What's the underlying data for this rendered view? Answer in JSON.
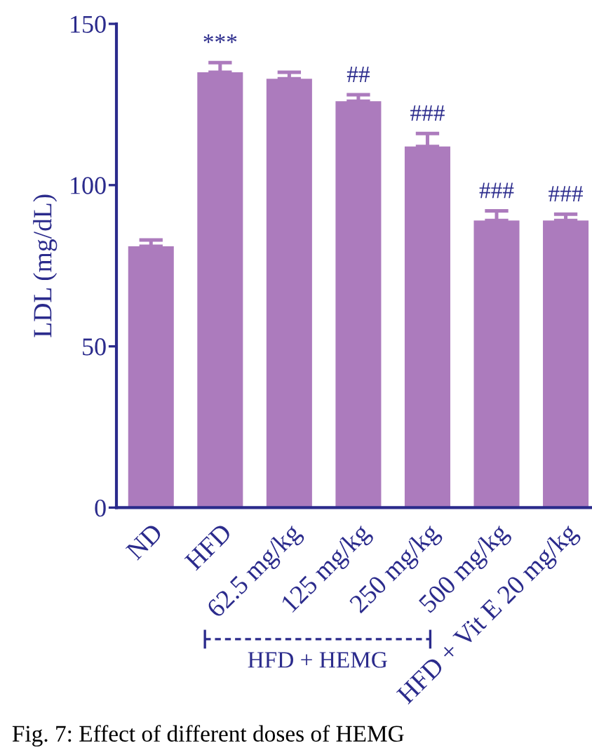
{
  "chart_data": {
    "type": "bar",
    "ylabel": "LDL (mg/dL)",
    "categories": [
      "ND",
      "HFD",
      "62.5 mg/kg",
      "125 mg/kg",
      "250 mg/kg",
      "500 mg/kg",
      "HFD + Vit E 20 mg/kg"
    ],
    "values": [
      81,
      135,
      133,
      126,
      112,
      89,
      89
    ],
    "errors": [
      2,
      3,
      2,
      2,
      4,
      3,
      2
    ],
    "color": "#ac7bbd",
    "ylim": [
      0,
      150
    ],
    "yticks": [
      0,
      50,
      100,
      150
    ],
    "annotations": [
      {
        "text": "***",
        "x": "HFD",
        "y": 135
      },
      {
        "text": "##",
        "x": "125 mg/kg",
        "y": 126
      },
      {
        "text": "###",
        "x": "250 mg/kg",
        "y": 112
      },
      {
        "text": "###",
        "x": "500 mg/kg",
        "y": 89
      },
      {
        "text": "###",
        "x": "HFD + Vit E 20 mg/kg",
        "y": 89
      },
      "HFD + HEMG",
      "Fig. 7: Effect of different doses of HEMG"
    ]
  }
}
